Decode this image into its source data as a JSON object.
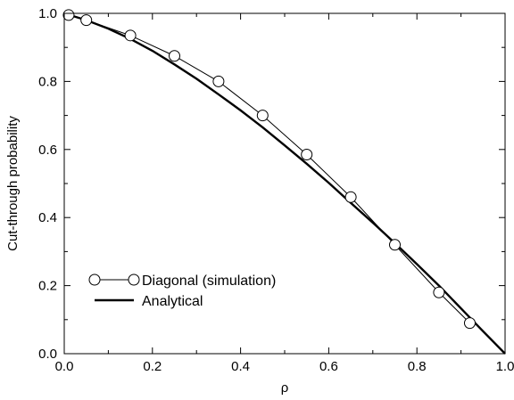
{
  "chart_data": {
    "type": "line",
    "xlabel": "ρ",
    "ylabel": "Cut-through probability",
    "xlim": [
      0.0,
      1.0
    ],
    "ylim": [
      0.0,
      1.0
    ],
    "xticks": [
      "0.0",
      "0.2",
      "0.4",
      "0.6",
      "0.8",
      "1.0"
    ],
    "yticks": [
      "0.0",
      "0.2",
      "0.4",
      "0.6",
      "0.8",
      "1.0"
    ],
    "grid": false,
    "legend_position": "bottom-left",
    "series": [
      {
        "name": "Diagonal (simulation)",
        "style": "line-with-circle-markers",
        "color": "#000000",
        "x": [
          0.01,
          0.05,
          0.15,
          0.25,
          0.35,
          0.45,
          0.55,
          0.65,
          0.75,
          0.85,
          0.92
        ],
        "y": [
          0.995,
          0.98,
          0.935,
          0.875,
          0.8,
          0.7,
          0.585,
          0.46,
          0.32,
          0.18,
          0.09
        ]
      },
      {
        "name": "Analytical",
        "style": "thick-line",
        "color": "#000000",
        "x": [
          0.0,
          0.05,
          0.1,
          0.15,
          0.2,
          0.25,
          0.3,
          0.35,
          0.4,
          0.45,
          0.5,
          0.55,
          0.6,
          0.65,
          0.7,
          0.75,
          0.8,
          0.85,
          0.9,
          0.95,
          1.0
        ],
        "y": [
          1.0,
          0.98,
          0.955,
          0.925,
          0.89,
          0.85,
          0.808,
          0.762,
          0.715,
          0.665,
          0.612,
          0.558,
          0.502,
          0.443,
          0.385,
          0.325,
          0.263,
          0.2,
          0.133,
          0.066,
          0.0
        ]
      }
    ]
  }
}
